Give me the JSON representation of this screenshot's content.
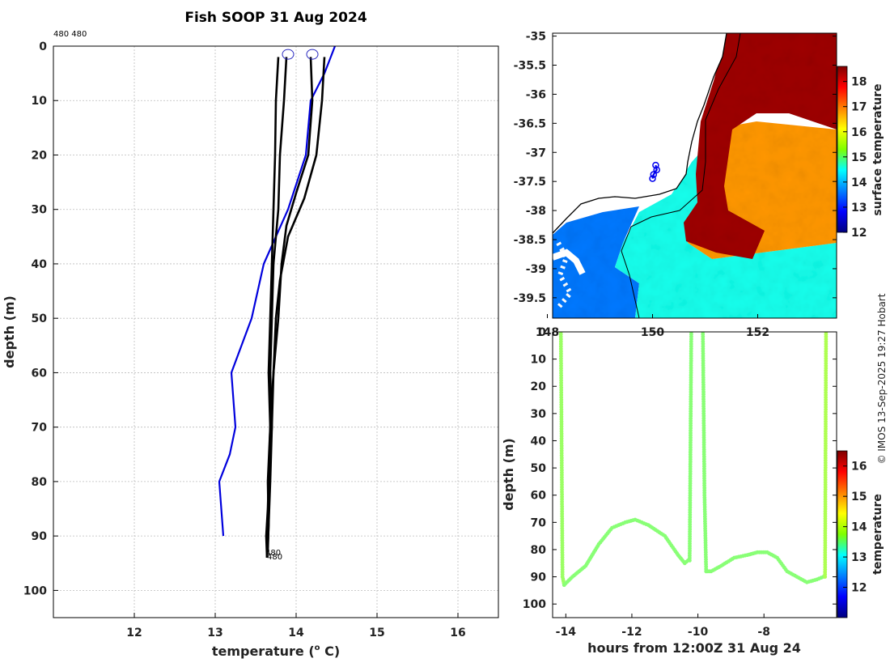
{
  "title": "Fish SOOP 31 Aug 2024",
  "credit": "© IMOS 13-Sep-2025 19:27 Hobart",
  "colors": {
    "profile": "#000000",
    "climatology": "#0000dd",
    "land": "#ffffff",
    "track": "#0000ee"
  },
  "chart_data": [
    {
      "id": "profile",
      "type": "line",
      "title": "Fish SOOP 31 Aug 2024",
      "xlabel": "temperature (",
      "xlabel_sup": "o",
      "xlabel_unit": " C)",
      "ylabel": "depth (m)",
      "xlim": [
        11,
        16.5
      ],
      "ylim": [
        105,
        0
      ],
      "xticks": [
        12,
        13,
        14,
        15,
        16
      ],
      "yticks": [
        0,
        10,
        20,
        30,
        40,
        50,
        60,
        70,
        80,
        90,
        100
      ],
      "grid": true,
      "top_label": "480 480",
      "end_labels": [
        "480",
        "480"
      ],
      "start_markers": [
        {
          "t": 13.9,
          "d": 1.5
        },
        {
          "t": 14.2,
          "d": 1.5
        }
      ],
      "series": [
        {
          "name": "climatology",
          "x": [
            14.48,
            14.35,
            14.18,
            14.12,
            13.9,
            13.75,
            13.6,
            13.45,
            13.2,
            13.25,
            13.18,
            13.05,
            13.1
          ],
          "y": [
            0,
            5,
            10,
            20,
            30,
            35,
            40,
            50,
            60,
            70,
            75,
            80,
            90
          ]
        },
        {
          "name": "profile-1",
          "x": [
            13.88,
            13.85,
            13.8,
            13.78,
            13.72,
            13.7,
            13.68,
            13.7,
            13.66,
            13.65,
            13.63,
            13.64
          ],
          "y": [
            2,
            10,
            20,
            30,
            40,
            50,
            60,
            70,
            80,
            85,
            90,
            94
          ]
        },
        {
          "name": "profile-2",
          "x": [
            13.78,
            13.75,
            13.74,
            13.72,
            13.7,
            13.68,
            13.66,
            13.68,
            13.65,
            13.66,
            13.65
          ],
          "y": [
            2,
            10,
            20,
            30,
            40,
            50,
            60,
            70,
            80,
            88,
            92
          ]
        },
        {
          "name": "profile-3",
          "x": [
            14.18,
            14.2,
            14.15,
            14.0,
            13.88,
            13.82,
            13.78,
            13.72,
            13.7,
            13.68,
            13.66,
            13.65
          ],
          "y": [
            2,
            10,
            20,
            27,
            33,
            40,
            50,
            60,
            70,
            80,
            88,
            93
          ]
        },
        {
          "name": "profile-4",
          "x": [
            14.35,
            14.32,
            14.25,
            14.1,
            13.9,
            13.8,
            13.75,
            13.72,
            13.68,
            13.66,
            13.65,
            13.64
          ],
          "y": [
            2,
            10,
            20,
            28,
            35,
            43,
            50,
            60,
            70,
            80,
            88,
            94
          ]
        }
      ]
    },
    {
      "id": "sst-map",
      "type": "heatmap",
      "colorbar_label": "surface temperature",
      "colorbar_range": [
        12,
        18.6
      ],
      "colorbar_ticks": [
        12,
        13,
        14,
        15,
        16,
        17,
        18
      ],
      "xlim": [
        148.1,
        153.5
      ],
      "ylim": [
        -39.85,
        -34.95
      ],
      "xticks": [
        148,
        150,
        152
      ],
      "yticks": [
        -35,
        -35.5,
        -36,
        -36.5,
        -37,
        -37.5,
        -38,
        -38.5,
        -39,
        -39.5
      ],
      "fields": [
        {
          "name": "warm-core",
          "temp": 18.4
        },
        {
          "name": "ambient",
          "temp": 16.8
        },
        {
          "name": "shelf",
          "temp": 14.6
        },
        {
          "name": "bass-strait",
          "temp": 13.6
        }
      ],
      "track": [
        [
          150.06,
          -37.22
        ],
        [
          150.08,
          -37.3
        ],
        [
          150.02,
          -37.38
        ],
        [
          150.0,
          -37.45
        ]
      ]
    },
    {
      "id": "time-depth",
      "type": "scatter",
      "xlabel": "hours from 12:00Z 31 Aug 24",
      "ylabel": "depth (m)",
      "colorbar_label": "temperature",
      "colorbar_range": [
        11,
        16.5
      ],
      "colorbar_ticks": [
        12,
        13,
        14,
        15,
        16
      ],
      "xlim": [
        -14.4,
        -5.8
      ],
      "ylim": [
        105,
        0
      ],
      "xticks": [
        -14,
        -12,
        -10,
        -8
      ],
      "yticks": [
        0,
        10,
        20,
        30,
        40,
        50,
        60,
        70,
        80,
        90,
        100
      ],
      "series": [
        {
          "name": "descent-1",
          "x": [
            -14.15,
            -14.1,
            -14.05
          ],
          "y": [
            0,
            90,
            93
          ],
          "temp": 13.9
        },
        {
          "name": "tow-1",
          "x": [
            -14.05,
            -13.8,
            -13.4,
            -13.0,
            -12.6,
            -12.2,
            -11.9,
            -11.5,
            -11.0,
            -10.6,
            -10.4,
            -10.3
          ],
          "y": [
            93,
            90,
            86,
            78,
            72,
            70,
            69,
            71,
            75,
            82,
            85,
            84
          ],
          "temp": 13.8
        },
        {
          "name": "ascent-1",
          "x": [
            -10.25,
            -10.2
          ],
          "y": [
            84,
            0
          ],
          "temp": 13.8
        },
        {
          "name": "descent-2",
          "x": [
            -9.85,
            -9.8,
            -9.75
          ],
          "y": [
            0,
            60,
            88
          ],
          "temp": 13.8
        },
        {
          "name": "tow-2",
          "x": [
            -9.75,
            -9.6,
            -9.3,
            -8.9,
            -8.5,
            -8.2,
            -7.9,
            -7.6,
            -7.3,
            -7.0,
            -6.7,
            -6.4,
            -6.2
          ],
          "y": [
            88,
            88,
            86,
            83,
            82,
            81,
            81,
            83,
            88,
            90,
            92,
            91,
            90
          ],
          "temp": 13.8
        },
        {
          "name": "ascent-2",
          "x": [
            -6.15,
            -6.12
          ],
          "y": [
            90,
            0
          ],
          "temp": 14.0
        }
      ]
    }
  ]
}
